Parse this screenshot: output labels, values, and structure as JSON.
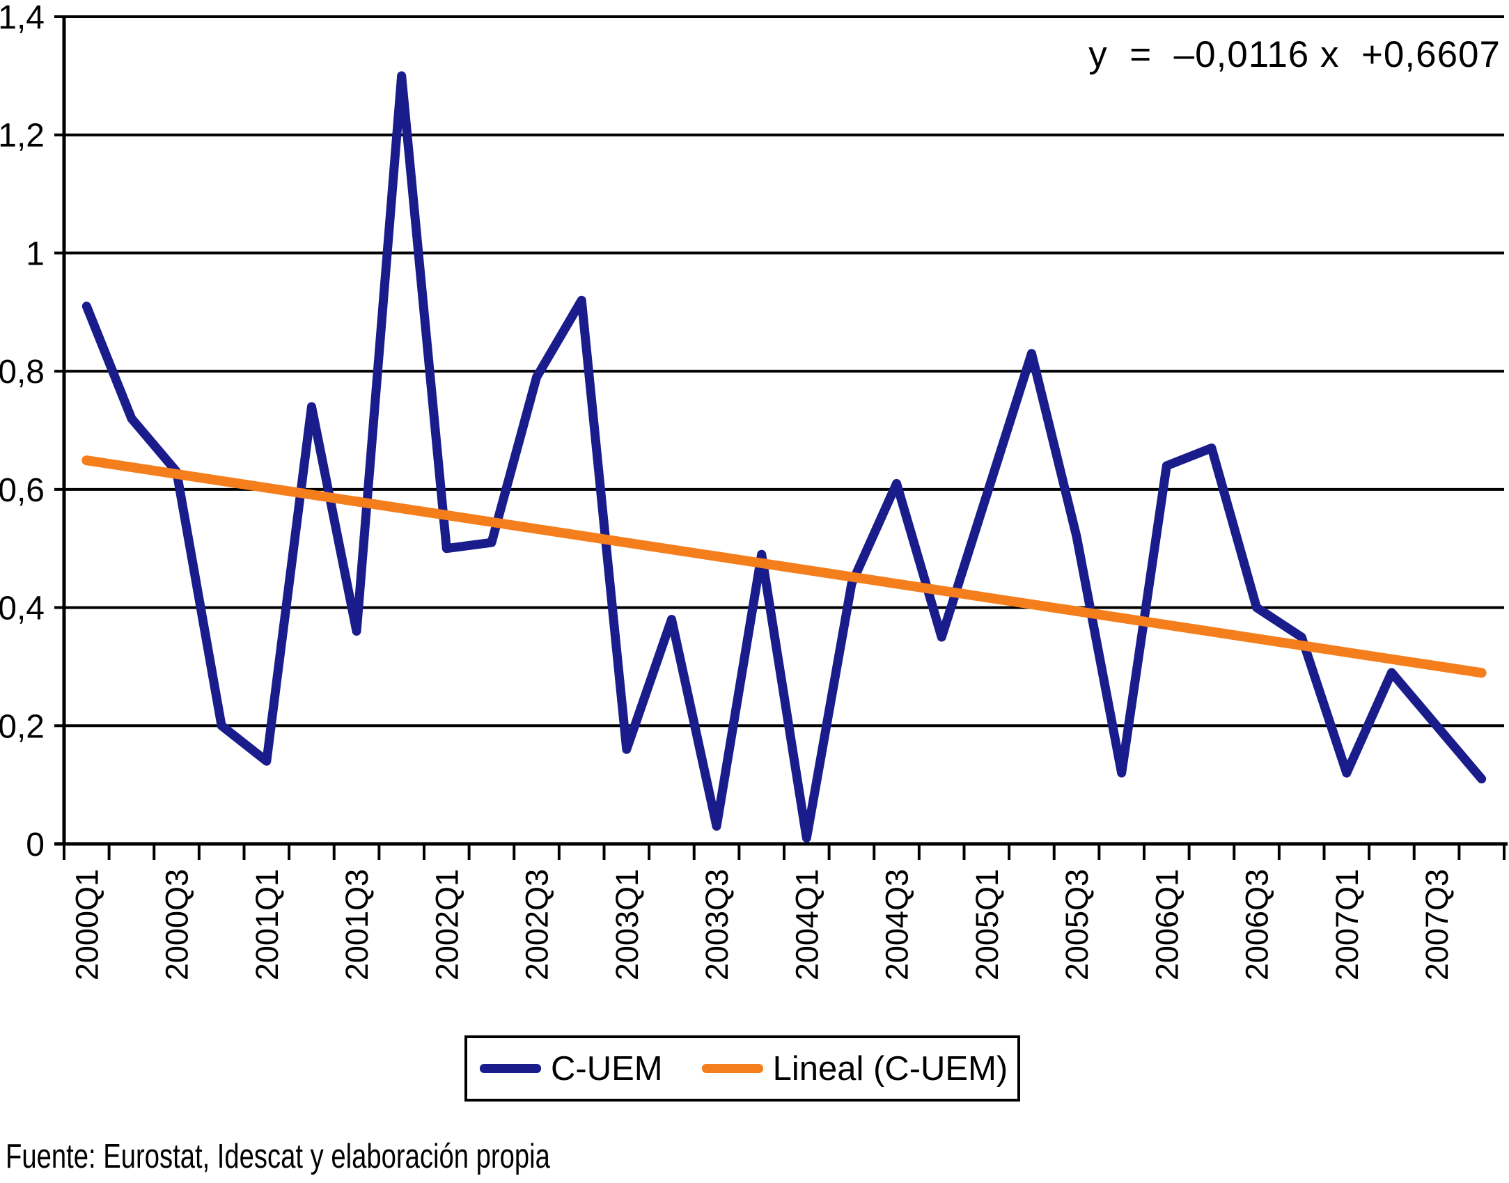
{
  "chart_data": {
    "type": "line",
    "title": "",
    "xlabel": "",
    "ylabel": "",
    "ylim": [
      0,
      1.4
    ],
    "grid": true,
    "legend_position": "bottom",
    "x": [
      "2000Q1",
      "2000Q2",
      "2000Q3",
      "2000Q4",
      "2001Q1",
      "2001Q2",
      "2001Q3",
      "2001Q4",
      "2002Q1",
      "2002Q2",
      "2002Q3",
      "2002Q4",
      "2003Q1",
      "2003Q2",
      "2003Q3",
      "2003Q4",
      "2004Q1",
      "2004Q2",
      "2004Q3",
      "2004Q4",
      "2005Q1",
      "2005Q2",
      "2005Q3",
      "2005Q4",
      "2006Q1",
      "2006Q2",
      "2006Q3",
      "2006Q4",
      "2007Q1",
      "2007Q2",
      "2007Q3",
      "2007Q4"
    ],
    "x_tick_labels": [
      "2000Q1",
      "2000Q3",
      "2001Q1",
      "2001Q3",
      "2002Q1",
      "2002Q3",
      "2003Q1",
      "2003Q3",
      "2004Q1",
      "2004Q3",
      "2005Q1",
      "2005Q3",
      "2006Q1",
      "2006Q3",
      "2007Q1",
      "2007Q3"
    ],
    "y_tick_labels": [
      "0",
      "0,2",
      "0,4",
      "0,6",
      "0,8",
      "1",
      "1,2",
      "1,4"
    ],
    "y_tick_values": [
      0,
      0.2,
      0.4,
      0.6,
      0.8,
      1.0,
      1.2,
      1.4
    ],
    "series": [
      {
        "name": "C-UEM",
        "color": "#1A1C8C",
        "values": [
          0.91,
          0.72,
          0.63,
          0.2,
          0.14,
          0.74,
          0.36,
          1.3,
          0.5,
          0.51,
          0.79,
          0.92,
          0.16,
          0.38,
          0.03,
          0.49,
          0.01,
          0.44,
          0.61,
          0.35,
          0.59,
          0.83,
          0.52,
          0.12,
          0.64,
          0.67,
          0.4,
          0.35,
          0.12,
          0.29,
          0.2,
          0.11
        ]
      },
      {
        "name": "Lineal (C-UEM)",
        "color": "#F57E1C",
        "trend": {
          "slope": -0.0116,
          "intercept": 0.6607
        }
      }
    ]
  },
  "equation": {
    "label": "y  =  –0,0116 x  +0,6607"
  },
  "legend": {
    "items": [
      {
        "label": "C-UEM",
        "color": "#1A1C8C"
      },
      {
        "label": "Lineal (C-UEM)",
        "color": "#F57E1C"
      }
    ]
  },
  "footer": {
    "source_text": "Fuente: Eurostat, Idescat y elaboración propia"
  }
}
